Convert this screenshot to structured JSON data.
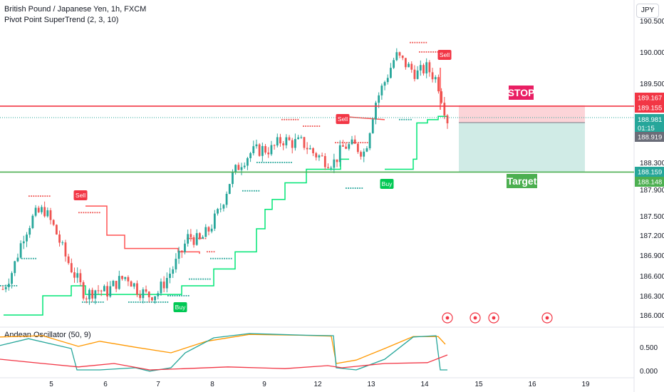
{
  "header": {
    "symbol_title": "British Pound / Japanese Yen, 1h, FXCM",
    "indicator_title": "Pivot Point SuperTrend (2, 3, 10)",
    "currency_button": "JPY"
  },
  "oscillator": {
    "title": "Andean Oscillator (50, 9)",
    "y_ticks": [
      "0.500",
      "0.000"
    ]
  },
  "price_axis": {
    "ticks": [
      "190.500",
      "190.000",
      "189.500",
      "188.300",
      "187.900",
      "187.500",
      "187.200",
      "186.900",
      "186.600",
      "186.300",
      "186.000"
    ]
  },
  "time_axis": {
    "ticks": [
      "5",
      "6",
      "7",
      "8",
      "9",
      "12",
      "13",
      "14",
      "15",
      "16",
      "19"
    ]
  },
  "price_tags": {
    "stop_price": "189.167",
    "red_line_price": "189.155",
    "last_price": "188.981",
    "countdown": "01:15",
    "low_tag": "188.919",
    "target_upper": "188.159",
    "target_lower": "188.148"
  },
  "trade_box": {
    "stop_label": "STOP",
    "target_label": "Target"
  },
  "signals": {
    "labels": [
      "Sell",
      "Buy",
      "Sell",
      "Buy",
      "Sell"
    ]
  },
  "colors": {
    "up": "#26a69a",
    "down": "#ef5350",
    "stop_line": "#f23645",
    "target_line": "#4caf50",
    "supertrend_up": "#00e676",
    "supertrend_down": "#ff5252",
    "stop_zone": "#fcd4d8",
    "target_zone": "#d0ebe6",
    "osc_bull": "#26a69a",
    "osc_bear": "#ff9800",
    "osc_signal": "#f23645"
  },
  "chart_data": {
    "type": "candlestick",
    "symbol": "GBPJPY",
    "timeframe": "1h",
    "price_range": [
      185.9,
      190.55
    ],
    "stop_level": 189.167,
    "red_line_level": 189.155,
    "target_level": 188.159,
    "last_price": 188.981,
    "supertrend_up_levels": [
      186.0,
      186.3,
      186.45,
      186.32,
      186.32,
      186.32,
      186.32,
      186.32,
      186.45,
      186.7,
      186.95,
      187.75,
      188.05,
      188.2,
      188.2,
      188.2,
      188.35,
      188.2,
      188.35,
      188.35,
      188.95,
      189.0
    ],
    "supertrend_down_levels": [
      187.65,
      187.2,
      187.0,
      186.95,
      186.92,
      188.99,
      188.95
    ],
    "closes": [
      186.4,
      186.7,
      187.2,
      187.5,
      187.6,
      187.3,
      186.9,
      186.6,
      186.3,
      186.4,
      186.35,
      186.5,
      186.6,
      186.4,
      186.3,
      186.35,
      186.6,
      186.85,
      187.2,
      187.1,
      187.3,
      187.6,
      188.05,
      188.3,
      188.45,
      188.5,
      188.5,
      188.65,
      188.6,
      188.6,
      188.45,
      188.35,
      188.3,
      188.55,
      188.55,
      188.45,
      189.2,
      189.55,
      189.95,
      189.8,
      189.65,
      189.75,
      189.55,
      188.95
    ],
    "oscillator_range": [
      0,
      0.9
    ]
  }
}
